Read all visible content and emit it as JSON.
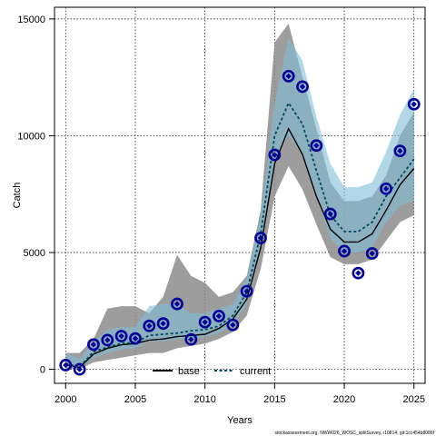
{
  "chart_data": {
    "type": "line",
    "xlabel": "Years",
    "ylabel": "Catch",
    "xlim": [
      1999.2,
      2025.8
    ],
    "ylim": [
      -600,
      15500
    ],
    "x_ticks": [
      2000,
      2005,
      2010,
      2015,
      2020,
      2025
    ],
    "y_ticks": [
      0,
      5000,
      10000,
      15000
    ],
    "grid": true,
    "legend_position": "bottom-center",
    "years": [
      2000,
      2001,
      2002,
      2003,
      2004,
      2005,
      2006,
      2007,
      2008,
      2009,
      2010,
      2011,
      2012,
      2013,
      2014,
      2015,
      2016,
      2017,
      2018,
      2019,
      2020,
      2021,
      2022,
      2023,
      2024,
      2025
    ],
    "observed": [
      180,
      0,
      1060,
      1250,
      1420,
      1320,
      1860,
      1960,
      2800,
      1280,
      2020,
      2280,
      1900,
      3340,
      5620,
      9180,
      12550,
      12100,
      9580,
      6650,
      5060,
      4120,
      4960,
      7730,
      9350,
      11350
    ],
    "series": [
      {
        "name": "base",
        "color": "#000000",
        "dash": "solid",
        "values": [
          200,
          80,
          650,
          900,
          1050,
          1100,
          1250,
          1300,
          1400,
          1450,
          1500,
          1750,
          2150,
          3000,
          5200,
          8800,
          10300,
          9200,
          7400,
          6000,
          5450,
          5450,
          5800,
          6800,
          7900,
          8600
        ],
        "lower": [
          20,
          10,
          300,
          400,
          500,
          600,
          700,
          700,
          900,
          1000,
          1100,
          1300,
          1600,
          2300,
          4300,
          7400,
          8700,
          7700,
          6200,
          4800,
          4500,
          4500,
          4700,
          5500,
          6300,
          6600
        ],
        "upper": [
          700,
          700,
          1300,
          2600,
          2700,
          2700,
          2400,
          3100,
          4900,
          4000,
          3700,
          3100,
          3300,
          4000,
          6800,
          14000,
          14800,
          12500,
          10300,
          8000,
          7200,
          7200,
          7400,
          8300,
          10000,
          11000
        ],
        "band_color": "#8c8c8c"
      },
      {
        "name": "current",
        "color": "#00485e",
        "dash": "dashed",
        "values": [
          250,
          100,
          750,
          950,
          1100,
          1150,
          1450,
          1500,
          1550,
          1650,
          1700,
          1850,
          2300,
          3300,
          5800,
          10000,
          11400,
          10500,
          8500,
          6600,
          5900,
          5900,
          6300,
          7400,
          8200,
          9000
        ],
        "lower": [
          100,
          50,
          500,
          700,
          850,
          900,
          1200,
          1200,
          1300,
          1300,
          1400,
          1550,
          1900,
          2800,
          5200,
          9000,
          10000,
          9200,
          7400,
          5600,
          5000,
          5000,
          5200,
          6300,
          7000,
          7200
        ],
        "upper": [
          700,
          450,
          1150,
          1700,
          1800,
          1800,
          2700,
          2800,
          2800,
          2400,
          2400,
          2600,
          2800,
          3900,
          6600,
          11400,
          14200,
          13200,
          10800,
          8800,
          7800,
          7800,
          8000,
          9300,
          10900,
          12000
        ],
        "band_color": "#7fbcd6"
      }
    ],
    "marker_color": "#000099"
  },
  "footnote": "stockassessment.org, NWW026_WOSC_splitSurvey, r10814, git:1cc454b8086f"
}
